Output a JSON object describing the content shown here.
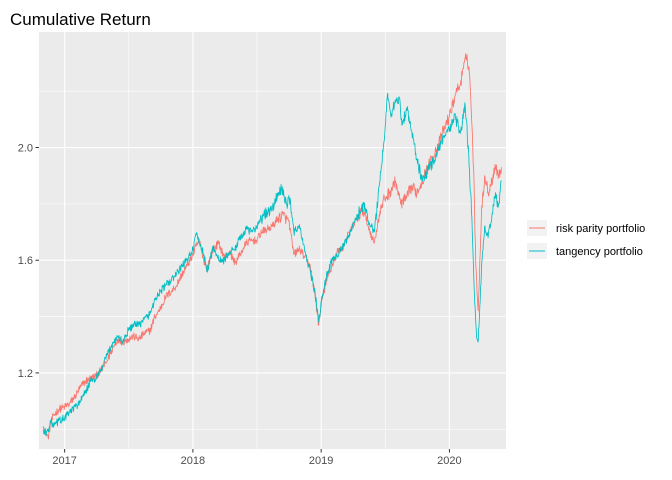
{
  "chart_data": {
    "type": "line",
    "title": "Cumulative Return",
    "xlabel": "",
    "ylabel": "",
    "x_ticks": [
      "2017",
      "2018",
      "2019",
      "2020"
    ],
    "y_ticks": [
      "1.2",
      "1.6",
      "2.0"
    ],
    "xlim": [
      "2016-10-20",
      "2020-06-10"
    ],
    "ylim": [
      0.93,
      2.41
    ],
    "grid": true,
    "legend_position": "right",
    "series": [
      {
        "name": "risk parity portfolio",
        "color": "#F8766D",
        "points": [
          [
            "2016-11-01",
            1.0
          ],
          [
            "2016-11-08",
            0.99
          ],
          [
            "2016-11-15",
            0.97
          ],
          [
            "2016-11-22",
            1.02
          ],
          [
            "2016-12-01",
            1.05
          ],
          [
            "2016-12-15",
            1.07
          ],
          [
            "2017-01-01",
            1.08
          ],
          [
            "2017-01-15",
            1.09
          ],
          [
            "2017-02-01",
            1.12
          ],
          [
            "2017-02-15",
            1.15
          ],
          [
            "2017-03-01",
            1.17
          ],
          [
            "2017-03-15",
            1.18
          ],
          [
            "2017-04-01",
            1.19
          ],
          [
            "2017-04-15",
            1.21
          ],
          [
            "2017-05-01",
            1.24
          ],
          [
            "2017-05-15",
            1.28
          ],
          [
            "2017-06-01",
            1.32
          ],
          [
            "2017-06-15",
            1.31
          ],
          [
            "2017-07-01",
            1.32
          ],
          [
            "2017-07-15",
            1.33
          ],
          [
            "2017-08-01",
            1.32
          ],
          [
            "2017-08-15",
            1.34
          ],
          [
            "2017-09-01",
            1.35
          ],
          [
            "2017-09-15",
            1.4
          ],
          [
            "2017-10-01",
            1.43
          ],
          [
            "2017-10-15",
            1.47
          ],
          [
            "2017-11-01",
            1.49
          ],
          [
            "2017-11-15",
            1.51
          ],
          [
            "2017-12-01",
            1.55
          ],
          [
            "2017-12-15",
            1.58
          ],
          [
            "2018-01-01",
            1.62
          ],
          [
            "2018-01-10",
            1.65
          ],
          [
            "2018-01-20",
            1.67
          ],
          [
            "2018-02-01",
            1.6
          ],
          [
            "2018-02-10",
            1.57
          ],
          [
            "2018-02-20",
            1.61
          ],
          [
            "2018-03-01",
            1.64
          ],
          [
            "2018-03-15",
            1.66
          ],
          [
            "2018-04-01",
            1.61
          ],
          [
            "2018-04-15",
            1.63
          ],
          [
            "2018-05-01",
            1.59
          ],
          [
            "2018-05-15",
            1.62
          ],
          [
            "2018-06-01",
            1.66
          ],
          [
            "2018-06-15",
            1.67
          ],
          [
            "2018-07-01",
            1.67
          ],
          [
            "2018-07-15",
            1.7
          ],
          [
            "2018-08-01",
            1.71
          ],
          [
            "2018-08-15",
            1.72
          ],
          [
            "2018-09-01",
            1.75
          ],
          [
            "2018-09-15",
            1.76
          ],
          [
            "2018-10-01",
            1.74
          ],
          [
            "2018-10-15",
            1.62
          ],
          [
            "2018-11-01",
            1.64
          ],
          [
            "2018-11-15",
            1.61
          ],
          [
            "2018-12-01",
            1.58
          ],
          [
            "2018-12-15",
            1.47
          ],
          [
            "2018-12-25",
            1.37
          ],
          [
            "2019-01-05",
            1.47
          ],
          [
            "2019-01-20",
            1.54
          ],
          [
            "2019-02-01",
            1.58
          ],
          [
            "2019-02-15",
            1.63
          ],
          [
            "2019-03-01",
            1.64
          ],
          [
            "2019-03-15",
            1.68
          ],
          [
            "2019-04-01",
            1.72
          ],
          [
            "2019-04-15",
            1.75
          ],
          [
            "2019-05-01",
            1.78
          ],
          [
            "2019-05-15",
            1.72
          ],
          [
            "2019-06-01",
            1.66
          ],
          [
            "2019-06-15",
            1.76
          ],
          [
            "2019-07-01",
            1.82
          ],
          [
            "2019-07-15",
            1.84
          ],
          [
            "2019-08-01",
            1.88
          ],
          [
            "2019-08-15",
            1.8
          ],
          [
            "2019-09-01",
            1.82
          ],
          [
            "2019-09-15",
            1.86
          ],
          [
            "2019-10-01",
            1.84
          ],
          [
            "2019-10-15",
            1.88
          ],
          [
            "2019-11-01",
            1.93
          ],
          [
            "2019-11-15",
            1.97
          ],
          [
            "2019-12-01",
            2.01
          ],
          [
            "2019-12-15",
            2.06
          ],
          [
            "2020-01-01",
            2.11
          ],
          [
            "2020-01-10",
            2.15
          ],
          [
            "2020-01-20",
            2.2
          ],
          [
            "2020-01-31",
            2.22
          ],
          [
            "2020-02-10",
            2.28
          ],
          [
            "2020-02-20",
            2.33
          ],
          [
            "2020-02-28",
            2.25
          ],
          [
            "2020-03-05",
            2.08
          ],
          [
            "2020-03-10",
            1.92
          ],
          [
            "2020-03-16",
            1.58
          ],
          [
            "2020-03-23",
            1.42
          ],
          [
            "2020-04-01",
            1.76
          ],
          [
            "2020-04-10",
            1.9
          ],
          [
            "2020-04-20",
            1.84
          ],
          [
            "2020-05-01",
            1.88
          ],
          [
            "2020-05-10",
            1.94
          ],
          [
            "2020-05-20",
            1.9
          ],
          [
            "2020-05-28",
            1.93
          ]
        ]
      },
      {
        "name": "tangency portfolio",
        "color": "#00BFC4",
        "points": [
          [
            "2016-11-01",
            1.01
          ],
          [
            "2016-11-08",
            0.98
          ],
          [
            "2016-11-15",
            1.0
          ],
          [
            "2016-11-22",
            1.03
          ],
          [
            "2016-12-01",
            1.01
          ],
          [
            "2016-12-15",
            1.03
          ],
          [
            "2017-01-01",
            1.04
          ],
          [
            "2017-01-15",
            1.06
          ],
          [
            "2017-02-01",
            1.08
          ],
          [
            "2017-02-15",
            1.1
          ],
          [
            "2017-03-01",
            1.13
          ],
          [
            "2017-03-15",
            1.17
          ],
          [
            "2017-04-01",
            1.18
          ],
          [
            "2017-04-15",
            1.21
          ],
          [
            "2017-05-01",
            1.26
          ],
          [
            "2017-05-15",
            1.3
          ],
          [
            "2017-06-01",
            1.33
          ],
          [
            "2017-06-15",
            1.31
          ],
          [
            "2017-07-01",
            1.35
          ],
          [
            "2017-07-15",
            1.37
          ],
          [
            "2017-08-01",
            1.37
          ],
          [
            "2017-08-15",
            1.39
          ],
          [
            "2017-09-01",
            1.41
          ],
          [
            "2017-09-15",
            1.46
          ],
          [
            "2017-10-01",
            1.49
          ],
          [
            "2017-10-15",
            1.51
          ],
          [
            "2017-11-01",
            1.53
          ],
          [
            "2017-11-15",
            1.55
          ],
          [
            "2017-12-01",
            1.58
          ],
          [
            "2017-12-15",
            1.6
          ],
          [
            "2018-01-01",
            1.64
          ],
          [
            "2018-01-10",
            1.69
          ],
          [
            "2018-01-20",
            1.66
          ],
          [
            "2018-02-01",
            1.62
          ],
          [
            "2018-02-10",
            1.56
          ],
          [
            "2018-02-20",
            1.61
          ],
          [
            "2018-03-01",
            1.65
          ],
          [
            "2018-03-15",
            1.6
          ],
          [
            "2018-04-01",
            1.6
          ],
          [
            "2018-04-15",
            1.63
          ],
          [
            "2018-05-01",
            1.64
          ],
          [
            "2018-05-15",
            1.68
          ],
          [
            "2018-06-01",
            1.71
          ],
          [
            "2018-06-15",
            1.7
          ],
          [
            "2018-07-01",
            1.72
          ],
          [
            "2018-07-15",
            1.75
          ],
          [
            "2018-08-01",
            1.77
          ],
          [
            "2018-08-15",
            1.78
          ],
          [
            "2018-09-01",
            1.84
          ],
          [
            "2018-09-10",
            1.85
          ],
          [
            "2018-09-25",
            1.8
          ],
          [
            "2018-10-05",
            1.82
          ],
          [
            "2018-10-15",
            1.7
          ],
          [
            "2018-11-01",
            1.72
          ],
          [
            "2018-11-15",
            1.63
          ],
          [
            "2018-12-01",
            1.56
          ],
          [
            "2018-12-15",
            1.48
          ],
          [
            "2018-12-25",
            1.38
          ],
          [
            "2019-01-05",
            1.48
          ],
          [
            "2019-01-20",
            1.56
          ],
          [
            "2019-02-01",
            1.6
          ],
          [
            "2019-02-15",
            1.62
          ],
          [
            "2019-03-01",
            1.64
          ],
          [
            "2019-03-15",
            1.67
          ],
          [
            "2019-04-01",
            1.72
          ],
          [
            "2019-04-15",
            1.76
          ],
          [
            "2019-05-01",
            1.8
          ],
          [
            "2019-05-15",
            1.74
          ],
          [
            "2019-06-01",
            1.7
          ],
          [
            "2019-06-15",
            1.86
          ],
          [
            "2019-07-01",
            2.05
          ],
          [
            "2019-07-08",
            2.18
          ],
          [
            "2019-07-20",
            2.12
          ],
          [
            "2019-08-01",
            2.16
          ],
          [
            "2019-08-10",
            2.18
          ],
          [
            "2019-08-20",
            2.08
          ],
          [
            "2019-09-01",
            2.14
          ],
          [
            "2019-09-15",
            2.06
          ],
          [
            "2019-10-01",
            1.96
          ],
          [
            "2019-10-15",
            1.88
          ],
          [
            "2019-11-01",
            1.92
          ],
          [
            "2019-11-15",
            1.95
          ],
          [
            "2019-12-01",
            2.0
          ],
          [
            "2019-12-15",
            2.04
          ],
          [
            "2020-01-01",
            2.06
          ],
          [
            "2020-01-15",
            2.12
          ],
          [
            "2020-02-01",
            2.05
          ],
          [
            "2020-02-15",
            2.15
          ],
          [
            "2020-02-25",
            1.97
          ],
          [
            "2020-03-05",
            1.75
          ],
          [
            "2020-03-12",
            1.48
          ],
          [
            "2020-03-18",
            1.33
          ],
          [
            "2020-03-23",
            1.31
          ],
          [
            "2020-04-01",
            1.56
          ],
          [
            "2020-04-10",
            1.72
          ],
          [
            "2020-04-20",
            1.68
          ],
          [
            "2020-05-01",
            1.76
          ],
          [
            "2020-05-10",
            1.82
          ],
          [
            "2020-05-20",
            1.8
          ],
          [
            "2020-05-28",
            1.88
          ]
        ]
      }
    ]
  }
}
